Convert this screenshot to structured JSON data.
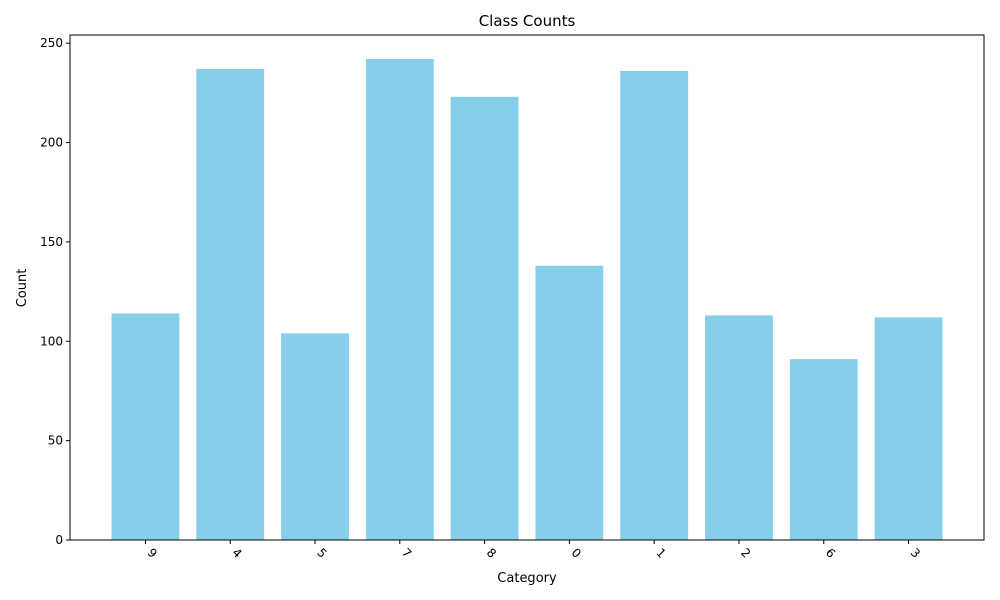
{
  "chart_data": {
    "type": "bar",
    "title": "Class Counts",
    "xlabel": "Category",
    "ylabel": "Count",
    "categories": [
      "9",
      "4",
      "5",
      "7",
      "8",
      "0",
      "1",
      "2",
      "6",
      "3"
    ],
    "values": [
      114,
      237,
      104,
      242,
      223,
      138,
      236,
      113,
      91,
      112
    ],
    "ylim": [
      0,
      254.1
    ],
    "yticks": [
      0,
      50,
      100,
      150,
      200,
      250
    ],
    "xtick_rotation_deg": 45,
    "bar_color": "#87CEEB",
    "grid": false,
    "legend": "none"
  }
}
